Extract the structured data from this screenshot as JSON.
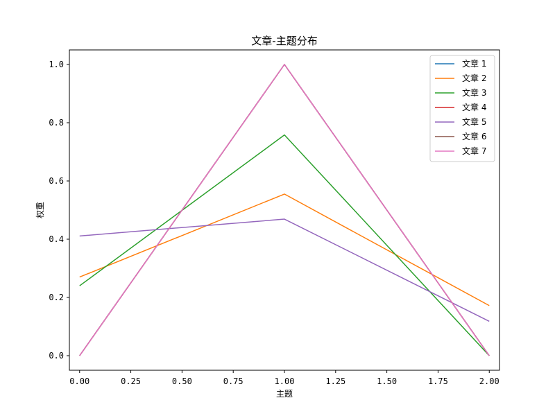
{
  "chart_data": {
    "type": "line",
    "title": "文章-主题分布",
    "xlabel": "主题",
    "ylabel": "权重",
    "x": [
      0,
      1,
      2
    ],
    "xlim": [
      -0.05,
      2.05
    ],
    "ylim": [
      -0.05,
      1.05
    ],
    "x_ticks": [
      0,
      0.25,
      0.5,
      0.75,
      1.0,
      1.25,
      1.5,
      1.75,
      2.0
    ],
    "x_tick_labels": [
      "0.00",
      "0.25",
      "0.50",
      "0.75",
      "1.00",
      "1.25",
      "1.50",
      "1.75",
      "2.00"
    ],
    "y_ticks": [
      0,
      0.2,
      0.4,
      0.6,
      0.8,
      1.0
    ],
    "y_tick_labels": [
      "0.0",
      "0.2",
      "0.4",
      "0.6",
      "0.8",
      "1.0"
    ],
    "grid": false,
    "legend_position": "top-right",
    "series": [
      {
        "name": "文章 1",
        "color": "#1f77b4",
        "values": [
          0.0,
          1.0,
          0.0
        ]
      },
      {
        "name": "文章 2",
        "color": "#ff7f0e",
        "values": [
          0.27,
          0.555,
          0.172
        ]
      },
      {
        "name": "文章 3",
        "color": "#2ca02c",
        "values": [
          0.24,
          0.758,
          0.0
        ]
      },
      {
        "name": "文章 4",
        "color": "#d62728",
        "values": [
          0.0,
          1.0,
          0.0
        ]
      },
      {
        "name": "文章 5",
        "color": "#9467bd",
        "values": [
          0.411,
          0.469,
          0.118
        ]
      },
      {
        "name": "文章 6",
        "color": "#8c564b",
        "values": [
          0.0,
          1.0,
          0.0
        ]
      },
      {
        "name": "文章 7",
        "color": "#e377c2",
        "values": [
          0.0,
          1.0,
          0.0
        ]
      }
    ]
  }
}
